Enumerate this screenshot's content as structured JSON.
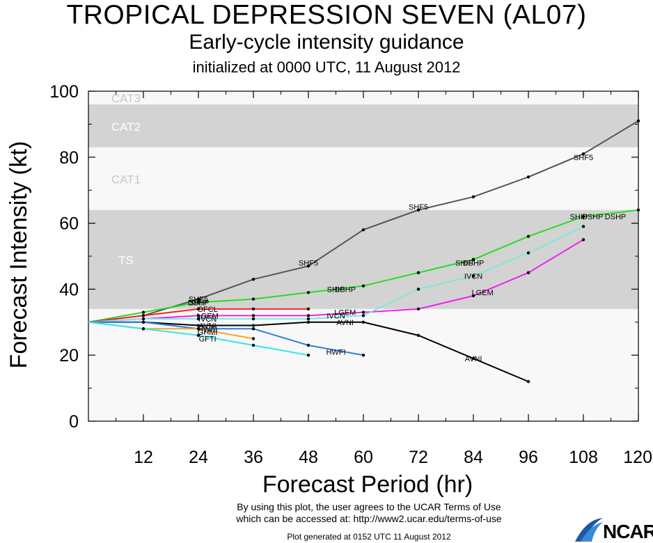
{
  "header": {
    "title": "TROPICAL DEPRESSION SEVEN (AL07)",
    "subtitle": "Early-cycle intensity guidance",
    "initialized": "initialized at 0000 UTC, 11 August 2012"
  },
  "footer": {
    "terms_line1": "By using this plot, the user agrees to the UCAR Terms of Use",
    "terms_line2": "which can be accessed at: http://www2.ucar.edu/terms-of-use",
    "generated": "Plot generated at 0152 UTC   11 August 2012",
    "logo": "NCAR"
  },
  "chart_data": {
    "type": "line",
    "xlabel": "Forecast Period (hr)",
    "ylabel": "Forecast Intensity (kt)",
    "xlim": [
      0,
      120
    ],
    "ylim": [
      0,
      100
    ],
    "xticks": [
      12,
      24,
      36,
      48,
      60,
      72,
      84,
      96,
      108,
      120
    ],
    "yticks": [
      0,
      20,
      40,
      60,
      80,
      100
    ],
    "bands": [
      {
        "label": "TS",
        "from": 34,
        "to": 64,
        "color": "#d3d3d3",
        "label_color": "#ffffff"
      },
      {
        "label": "CAT1",
        "from": 64,
        "to": 83,
        "color": "#f8f8f8",
        "label_color": "#c8c8c8"
      },
      {
        "label": "CAT2",
        "from": 83,
        "to": 96,
        "color": "#d3d3d3",
        "label_color": "#ffffff"
      },
      {
        "label": "CAT3",
        "from": 96,
        "to": 100,
        "color": "#f8f8f8",
        "label_color": "#c8c8c8"
      }
    ],
    "below_ts_color": "#f8f8f8",
    "series": [
      {
        "name": "SHF5",
        "color": "#555555",
        "x": [
          0,
          12,
          24,
          36,
          48,
          60,
          72,
          84,
          96,
          108,
          120
        ],
        "y": [
          30,
          32,
          37,
          43,
          47,
          58,
          64,
          68,
          74,
          81,
          91
        ],
        "label_at": [
          [
            24,
            37
          ],
          [
            48,
            48
          ],
          [
            72,
            65
          ],
          [
            108,
            80
          ]
        ]
      },
      {
        "name": "DSHP",
        "color": "#22dd22",
        "x": [
          0,
          12,
          24,
          36,
          48,
          60,
          72,
          84,
          96,
          108,
          120
        ],
        "y": [
          30,
          33,
          36,
          37,
          39,
          41,
          45,
          49,
          56,
          62,
          64
        ],
        "label_at": [
          [
            24,
            36
          ],
          [
            56,
            40
          ],
          [
            84,
            48
          ],
          [
            110,
            62
          ],
          [
            115,
            62
          ]
        ]
      },
      {
        "name": "SHIP",
        "color": "#22dd22",
        "x": [],
        "y": [],
        "label_at": [
          [
            24,
            36
          ],
          [
            54,
            40
          ],
          [
            82,
            48
          ],
          [
            107,
            62
          ]
        ]
      },
      {
        "name": "OFCL",
        "color": "#ff2222",
        "x": [
          0,
          12,
          24,
          36,
          48
        ],
        "y": [
          30,
          32,
          34,
          34,
          34
        ],
        "label_at": [
          [
            26,
            34
          ]
        ]
      },
      {
        "name": "LGEM",
        "color": "#ee22ee",
        "x": [
          0,
          12,
          24,
          36,
          48,
          60,
          72,
          84,
          96,
          108
        ],
        "y": [
          30,
          31,
          32,
          32,
          32,
          33,
          34,
          38,
          45,
          55
        ],
        "label_at": [
          [
            26,
            32
          ],
          [
            56,
            33
          ],
          [
            86,
            39
          ]
        ]
      },
      {
        "name": "IVCN",
        "color": "#7ee8d8",
        "x": [
          0,
          12,
          24,
          36,
          48,
          60,
          72,
          84,
          96,
          108
        ],
        "y": [
          30,
          31,
          31,
          31,
          31,
          32,
          40,
          44,
          51,
          59
        ],
        "label_at": [
          [
            26,
            31
          ],
          [
            54,
            32
          ],
          [
            84,
            44
          ]
        ]
      },
      {
        "name": "AVNI",
        "color": "#000000",
        "x": [
          0,
          12,
          24,
          36,
          48,
          60,
          72,
          84,
          96
        ],
        "y": [
          30,
          30,
          29,
          29,
          30,
          30,
          26,
          19,
          12
        ],
        "label_at": [
          [
            26,
            29
          ],
          [
            56,
            30
          ],
          [
            84,
            19
          ]
        ]
      },
      {
        "name": "HWFI",
        "color": "#2a7fe6",
        "x": [
          0,
          12,
          24,
          36,
          48,
          60
        ],
        "y": [
          30,
          30,
          28,
          28,
          23,
          20
        ],
        "label_at": [
          [
            26,
            28
          ],
          [
            54,
            21
          ]
        ]
      },
      {
        "name": "GHMI",
        "color": "#f5a623",
        "x": [
          0,
          12,
          24,
          36
        ],
        "y": [
          30,
          28,
          28,
          25
        ],
        "label_at": [
          [
            26,
            27
          ]
        ]
      },
      {
        "name": "GFTI",
        "color": "#33e5f0",
        "x": [
          0,
          12,
          24,
          36,
          48
        ],
        "y": [
          30,
          28,
          26,
          23,
          20
        ],
        "label_at": [
          [
            26,
            25
          ]
        ]
      }
    ]
  }
}
